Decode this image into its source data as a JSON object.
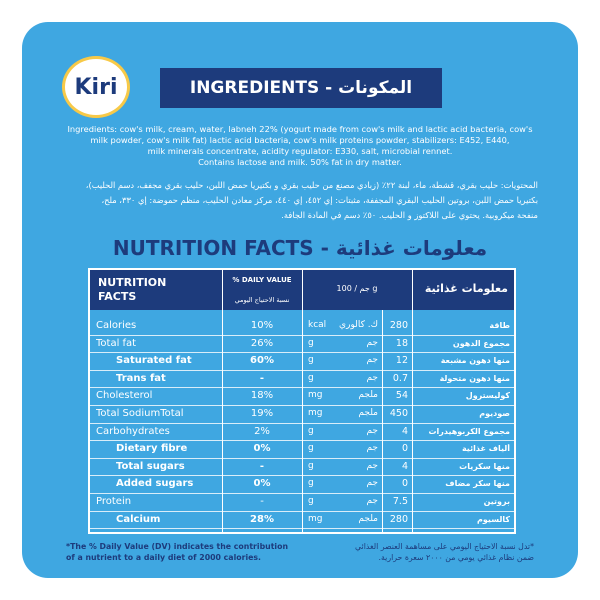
{
  "logo": "Kiri",
  "ingredients": {
    "title": "INGREDIENTS - المكونات",
    "english": [
      "Ingredients: cow's milk, cream, water, labneh 22% (yogurt made from cow's milk and lactic acid bacteria, cow's",
      "milk powder, cow's milk fat) lactic acid bacteria, cow's milk proteins powder, stabilizers: E452, E440,",
      "milk minerals concentrate, acidity regulator: E330, salt, microbial rennet.",
      "Contains lactose and milk. 50% fat in dry matter."
    ],
    "arabic": [
      "المحتويات: حليب بقري، قشطة، ماء، لبنة ٢٢٪ (زبادي مصنع من حليب بقري و بكتيريا حمض اللبن، حليب بقري مجفف، دسم الحليب)،",
      "بكتيريا حمض اللبن، بروتين الحليب البقري المجففة، مثبتات: إي ٤٥٢، إي ٤٤٠، مركز معادن الحليب، منظم حموضة: إي ٣٣٠، ملح،",
      "منفحة ميكروبية. يحتوي على اللاكتوز و الحليب. ٥٠٪ دسم في المادة الجافة."
    ]
  },
  "nutrition": {
    "title": "NUTRITION FACTS - معلومات غذائية",
    "header": [
      "NUTRITION FACTS",
      "% DAILY VALUE",
      "نسبة الاحتياج اليومي",
      "جم / 100 g",
      "معلومات غذائية"
    ],
    "rows": [
      [
        "Calories",
        "10%",
        "kcal",
        "ك. كالوري",
        "280",
        "طاقة"
      ],
      [
        "Total fat",
        "26%",
        "g",
        "جم",
        "18",
        "مجموع الدهون"
      ],
      [
        "Saturated fat",
        "60%",
        "g",
        "جم",
        "12",
        "منها دهون مشبعة"
      ],
      [
        "Trans fat",
        "-",
        "g",
        "جم",
        "0.7",
        "منها دهون متحولة"
      ],
      [
        "Cholesterol",
        "18%",
        "mg",
        "ملجم",
        "54",
        "كوليسترول"
      ],
      [
        "Total SodiumTotal",
        "19%",
        "mg",
        "ملجم",
        "450",
        "صوديوم"
      ],
      [
        "Carbohydrates",
        "2%",
        "g",
        "جم",
        "4",
        "مجموع الكربوهيدرات"
      ],
      [
        "Dietary fibre",
        "0%",
        "g",
        "جم",
        "0",
        "ألياف غذائية"
      ],
      [
        "Total sugars",
        "-",
        "g",
        "جم",
        "4",
        "منها سكريات"
      ],
      [
        "Added sugars",
        "0%",
        "g",
        "جم",
        "0",
        "منها سكر مضاف"
      ],
      [
        "Protein",
        "-",
        "g",
        "جم",
        "7.5",
        "بروتين"
      ],
      [
        "Calcium",
        "28%",
        "mg",
        "ملجم",
        "280",
        "كالسيوم"
      ]
    ],
    "footnote_en": [
      "*The % Daily Value (DV) indicates the contribution",
      "of a nutrient to a daily diet of 2000 calories."
    ],
    "footnote_ar": [
      "*تدل نسبة الاحتياج اليومي على مساهمة العنصر الغذائي",
      "ضمن نظام غذائي يومي من ٢٠٠٠ سعرة حرارية."
    ]
  }
}
